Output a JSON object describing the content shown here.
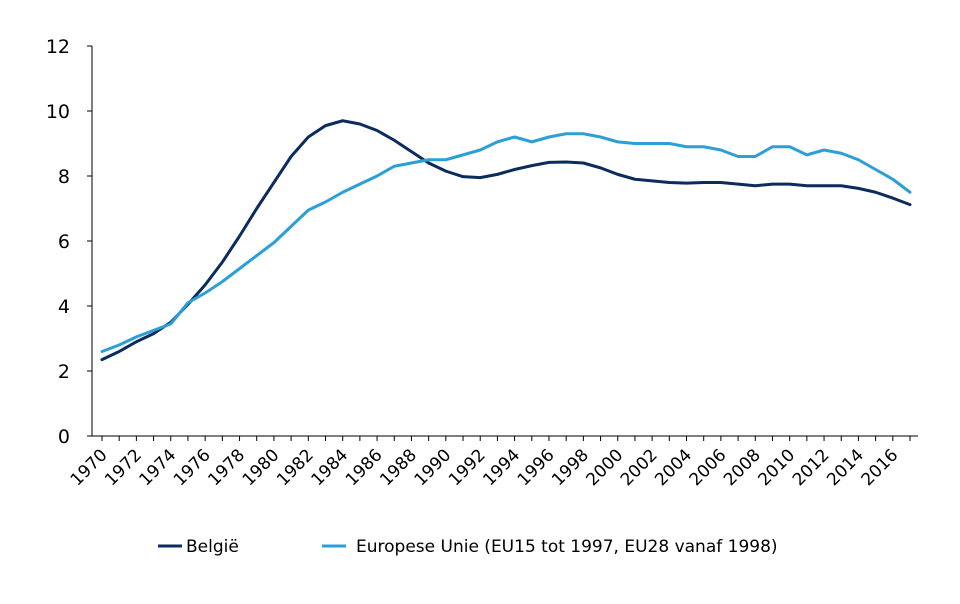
{
  "chart_data": {
    "type": "line",
    "title": "",
    "xlabel": "",
    "ylabel": "",
    "ylim": [
      0,
      12
    ],
    "yticks": [
      "0",
      "2",
      "4",
      "6",
      "8",
      "10",
      "12"
    ],
    "xticks": [
      "1970",
      "1972",
      "1974",
      "1976",
      "1978",
      "1980",
      "1982",
      "1984",
      "1986",
      "1988",
      "1990",
      "1992",
      "1994",
      "1996",
      "1998",
      "2000",
      "2002",
      "2004",
      "2006",
      "2008",
      "2010",
      "2012",
      "2014",
      "2016"
    ],
    "x": [
      1970,
      1971,
      1972,
      1973,
      1974,
      1975,
      1976,
      1977,
      1978,
      1979,
      1980,
      1981,
      1982,
      1983,
      1984,
      1985,
      1986,
      1987,
      1988,
      1989,
      1990,
      1991,
      1992,
      1993,
      1994,
      1995,
      1996,
      1997,
      1998,
      1999,
      2000,
      2001,
      2002,
      2003,
      2004,
      2005,
      2006,
      2007,
      2008,
      2009,
      2010,
      2011,
      2012,
      2013,
      2014,
      2015,
      2016,
      2017
    ],
    "grid": false,
    "legend_position": "bottom",
    "series": [
      {
        "name": "België",
        "color": "#0b2c5c",
        "values": [
          2.35,
          2.6,
          2.9,
          3.15,
          3.5,
          4.05,
          4.65,
          5.35,
          6.15,
          7.0,
          7.8,
          8.6,
          9.2,
          9.55,
          9.7,
          9.6,
          9.4,
          9.1,
          8.75,
          8.4,
          8.15,
          7.98,
          7.95,
          8.05,
          8.2,
          8.32,
          8.42,
          8.43,
          8.4,
          8.25,
          8.05,
          7.9,
          7.85,
          7.8,
          7.78,
          7.8,
          7.8,
          7.75,
          7.7,
          7.75,
          7.75,
          7.7,
          7.7,
          7.7,
          7.62,
          7.5,
          7.32,
          7.12
        ]
      },
      {
        "name": "Europese Unie (EU15 tot 1997, EU28 vanaf 1998)",
        "color": "#2b9fd6",
        "values": [
          2.6,
          2.8,
          3.05,
          3.25,
          3.45,
          4.1,
          4.4,
          4.75,
          5.15,
          5.55,
          5.95,
          6.45,
          6.95,
          7.2,
          7.5,
          7.75,
          8.0,
          8.3,
          8.4,
          8.5,
          8.5,
          8.65,
          8.8,
          9.05,
          9.2,
          9.05,
          9.2,
          9.3,
          9.3,
          9.2,
          9.05,
          9.0,
          9.0,
          9.0,
          8.9,
          8.9,
          8.8,
          8.6,
          8.6,
          8.9,
          8.9,
          8.65,
          8.8,
          8.7,
          8.5,
          8.2,
          7.9,
          7.5
        ]
      }
    ]
  }
}
